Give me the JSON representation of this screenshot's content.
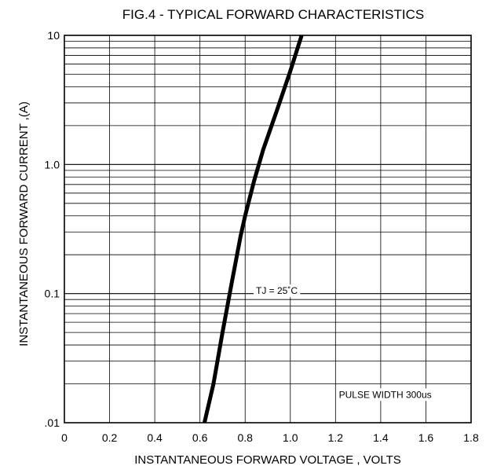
{
  "chart_data": {
    "type": "line",
    "title": "FIG.4 - TYPICAL FORWARD CHARACTERISTICS",
    "xlabel": "INSTANTANEOUS FORWARD VOLTAGE , VOLTS",
    "ylabel": "INSTANTANEOUS  FORWARD CURRENT ,(A)",
    "xlim": [
      0,
      1.8
    ],
    "ylim": [
      0.01,
      10
    ],
    "yscale": "log",
    "grid": true,
    "x_ticks": [
      0,
      0.2,
      0.4,
      0.6,
      0.8,
      1.0,
      1.2,
      1.4,
      1.6,
      1.8
    ],
    "x_tick_labels": [
      "0",
      "0.2",
      "0.4",
      "0.6",
      "0.8",
      "1.0",
      "1.2",
      "1.4",
      "1.6",
      "1.8"
    ],
    "y_ticks": [
      0.01,
      0.1,
      1.0,
      10
    ],
    "y_tick_labels": [
      ".01",
      "0.1",
      "1.0",
      "10"
    ],
    "series": [
      {
        "x": [
          0.62,
          0.66,
          0.7,
          0.74,
          0.78,
          0.8,
          0.84,
          0.88,
          0.94,
          1.0,
          1.05
        ],
        "y": [
          0.01,
          0.02,
          0.05,
          0.12,
          0.28,
          0.4,
          0.75,
          1.3,
          2.6,
          5.3,
          10
        ],
        "color": "#000000"
      }
    ],
    "annotations": [
      {
        "text": "TJ = 25˚C",
        "x": 0.94,
        "y": 0.105
      },
      {
        "text": "PULSE WIDTH 300us",
        "x": 1.42,
        "y": 0.0165
      }
    ]
  }
}
